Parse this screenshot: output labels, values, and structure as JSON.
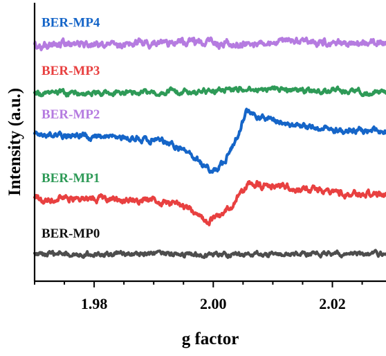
{
  "chart_data": {
    "type": "line",
    "title": "",
    "xlabel": "g factor",
    "ylabel": "Intensity (a.u.)",
    "xlim": [
      1.97,
      2.029
    ],
    "x_ticks": [
      {
        "value": 1.98,
        "label": "1.98"
      },
      {
        "value": 2.0,
        "label": "2.00"
      },
      {
        "value": 2.02,
        "label": "2.02"
      }
    ],
    "series": [
      {
        "name": "BER-MP0",
        "color": "#4d4d4d",
        "label_color": "#111111",
        "baseline": 0.0,
        "noise": 0.018,
        "points": [
          [
            1.97,
            0.0
          ],
          [
            2.029,
            0.0
          ]
        ]
      },
      {
        "name": "BER-MP1",
        "color": "#e84040",
        "label_color": "#2e9a57",
        "baseline": 0.38,
        "noise": 0.025,
        "points": [
          [
            1.97,
            0.38
          ],
          [
            1.975,
            0.385
          ],
          [
            1.98,
            0.38
          ],
          [
            1.985,
            0.375
          ],
          [
            1.99,
            0.37
          ],
          [
            1.994,
            0.35
          ],
          [
            1.997,
            0.28
          ],
          [
            1.999,
            0.23
          ],
          [
            2.001,
            0.25
          ],
          [
            2.003,
            0.33
          ],
          [
            2.0045,
            0.42
          ],
          [
            2.006,
            0.49
          ],
          [
            2.008,
            0.48
          ],
          [
            2.011,
            0.465
          ],
          [
            2.015,
            0.45
          ],
          [
            2.02,
            0.425
          ],
          [
            2.025,
            0.41
          ],
          [
            2.029,
            0.405
          ]
        ]
      },
      {
        "name": "BER-MP2",
        "color": "#1565c8",
        "label_color": "#b57be0",
        "baseline": 0.82,
        "noise": 0.022,
        "points": [
          [
            1.97,
            0.82
          ],
          [
            1.975,
            0.815
          ],
          [
            1.98,
            0.81
          ],
          [
            1.985,
            0.8
          ],
          [
            1.99,
            0.79
          ],
          [
            1.993,
            0.76
          ],
          [
            1.996,
            0.69
          ],
          [
            1.998,
            0.62
          ],
          [
            2.0,
            0.57
          ],
          [
            2.002,
            0.64
          ],
          [
            2.004,
            0.81
          ],
          [
            2.0055,
            0.98
          ],
          [
            2.007,
            0.96
          ],
          [
            2.01,
            0.91
          ],
          [
            2.013,
            0.89
          ],
          [
            2.016,
            0.87
          ],
          [
            2.02,
            0.855
          ],
          [
            2.025,
            0.85
          ],
          [
            2.029,
            0.84
          ]
        ]
      },
      {
        "name": "BER-MP3",
        "color": "#2e9a57",
        "label_color": "#e84040",
        "baseline": 1.12,
        "noise": 0.02,
        "points": [
          [
            1.97,
            1.1
          ],
          [
            1.975,
            1.11
          ],
          [
            1.98,
            1.105
          ],
          [
            1.985,
            1.11
          ],
          [
            1.99,
            1.115
          ],
          [
            1.995,
            1.12
          ],
          [
            2.0,
            1.125
          ],
          [
            2.005,
            1.14
          ],
          [
            2.01,
            1.13
          ],
          [
            2.015,
            1.125
          ],
          [
            2.02,
            1.12
          ],
          [
            2.025,
            1.115
          ],
          [
            2.029,
            1.12
          ]
        ]
      },
      {
        "name": "BER-MP4",
        "color": "#b57be0",
        "label_color": "#1565c8",
        "baseline": 1.45,
        "noise": 0.028,
        "points": [
          [
            1.97,
            1.43
          ],
          [
            1.975,
            1.45
          ],
          [
            1.98,
            1.445
          ],
          [
            1.985,
            1.44
          ],
          [
            1.99,
            1.45
          ],
          [
            1.995,
            1.46
          ],
          [
            2.0,
            1.45
          ],
          [
            2.005,
            1.455
          ],
          [
            2.01,
            1.45
          ],
          [
            2.015,
            1.47
          ],
          [
            2.02,
            1.455
          ],
          [
            2.025,
            1.45
          ],
          [
            2.029,
            1.455
          ]
        ]
      }
    ]
  }
}
